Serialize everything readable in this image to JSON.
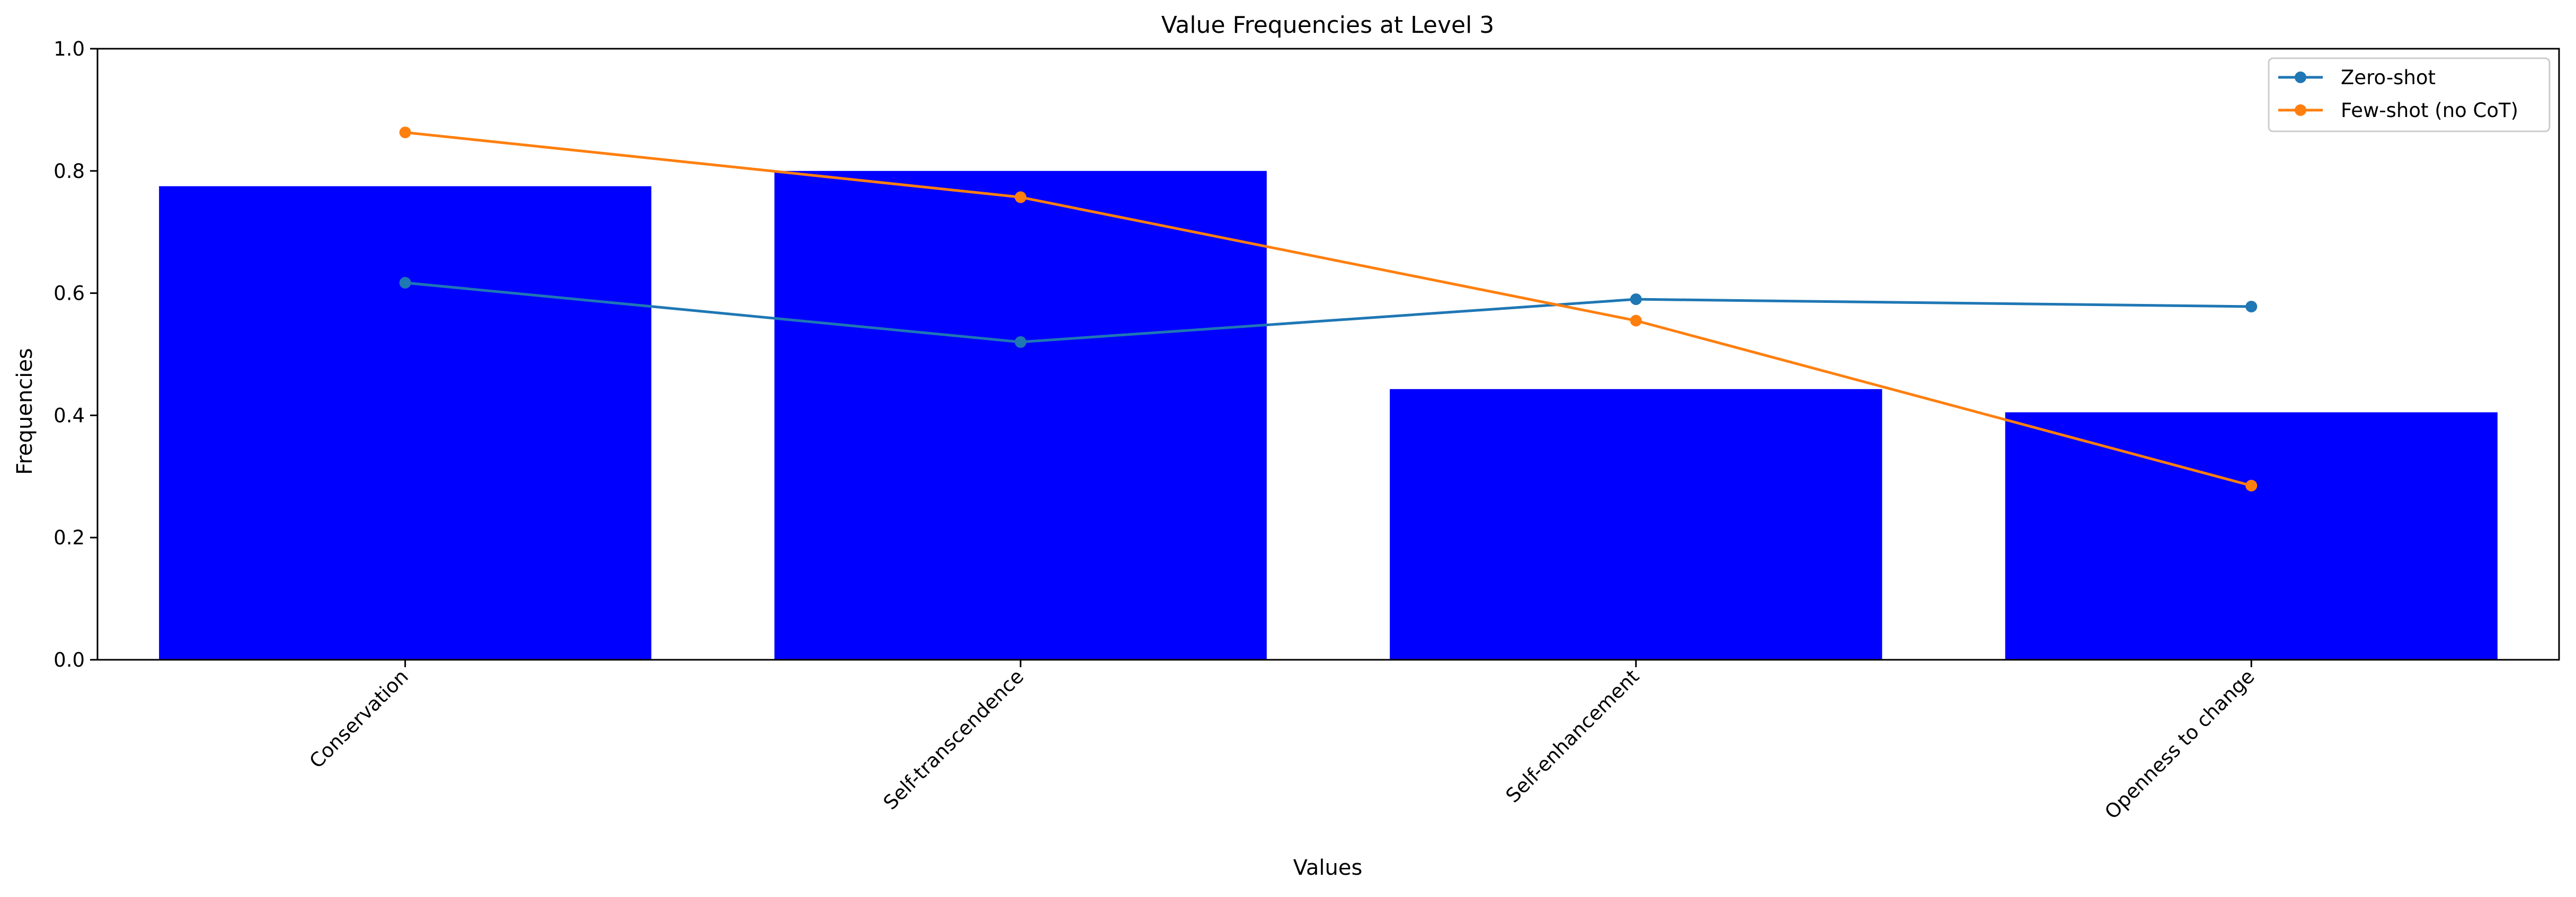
{
  "chart_data": {
    "type": "bar",
    "title": "Value Frequencies at Level 3",
    "xlabel": "Values",
    "ylabel": "Frequencies",
    "ylim": [
      0,
      1.0
    ],
    "yticks": [
      "0.0",
      "0.2",
      "0.4",
      "0.6",
      "0.8",
      "1.0"
    ],
    "categories": [
      "Conservation",
      "Self-transcendence",
      "Self-enhancement",
      "Openness to change"
    ],
    "bars": {
      "values": [
        0.775,
        0.8,
        0.443,
        0.405
      ],
      "color": "#0000ff"
    },
    "series": [
      {
        "name": "Zero-shot",
        "values": [
          0.617,
          0.52,
          0.59,
          0.578
        ],
        "color": "#1f77b4",
        "marker": "circle"
      },
      {
        "name": "Few-shot (no CoT)",
        "values": [
          0.863,
          0.757,
          0.555,
          0.285
        ],
        "color": "#ff7f0e",
        "marker": "circle"
      }
    ],
    "legend_position": "top-right",
    "grid": false
  }
}
